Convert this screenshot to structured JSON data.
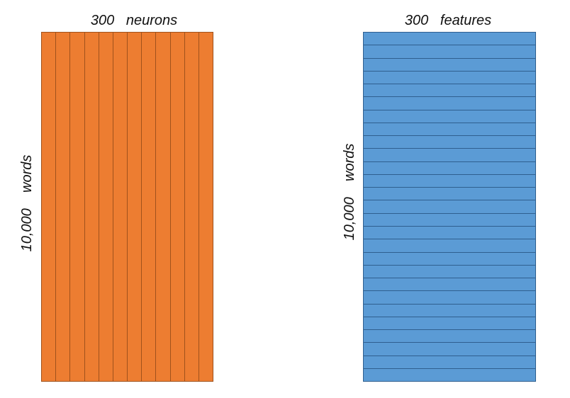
{
  "left_panel": {
    "top_label": "300   neurons",
    "side_label": "10,000    words",
    "column_count": 12,
    "fill_color": "#ED7D31",
    "stroke_color": "#A0521C"
  },
  "right_panel": {
    "top_label": "300   features",
    "side_label": "10,000    words",
    "row_count": 27,
    "fill_color": "#5B9BD5",
    "stroke_color": "#2F5F8F"
  }
}
